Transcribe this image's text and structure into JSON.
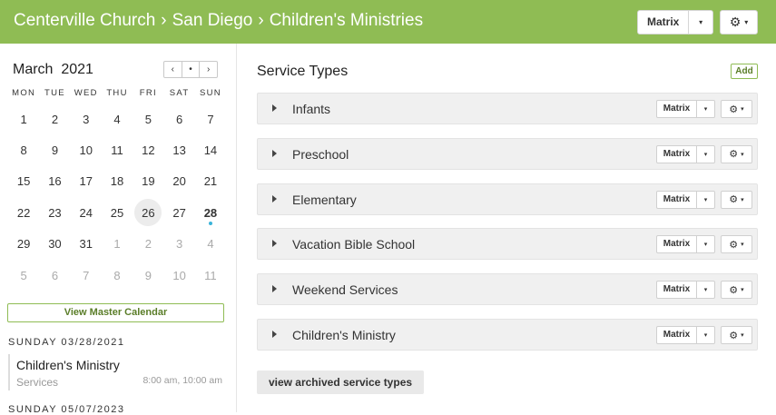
{
  "header": {
    "crumbs": [
      "Centerville Church",
      "San Diego",
      "Children's Ministries"
    ],
    "separator": "›",
    "matrix_label": "Matrix",
    "caret": "▾",
    "gear": "⚙"
  },
  "calendar": {
    "month": "March",
    "year": "2021",
    "nav": [
      "‹",
      "•",
      "›"
    ],
    "weekdays": [
      "MON",
      "TUE",
      "WED",
      "THU",
      "FRI",
      "SAT",
      "SUN"
    ],
    "days": [
      {
        "d": "1"
      },
      {
        "d": "2"
      },
      {
        "d": "3"
      },
      {
        "d": "4"
      },
      {
        "d": "5"
      },
      {
        "d": "6"
      },
      {
        "d": "7"
      },
      {
        "d": "8"
      },
      {
        "d": "9"
      },
      {
        "d": "10"
      },
      {
        "d": "11"
      },
      {
        "d": "12"
      },
      {
        "d": "13"
      },
      {
        "d": "14"
      },
      {
        "d": "15"
      },
      {
        "d": "16"
      },
      {
        "d": "17"
      },
      {
        "d": "18"
      },
      {
        "d": "19"
      },
      {
        "d": "20"
      },
      {
        "d": "21"
      },
      {
        "d": "22"
      },
      {
        "d": "23"
      },
      {
        "d": "24"
      },
      {
        "d": "25"
      },
      {
        "d": "26",
        "state": "selected"
      },
      {
        "d": "27"
      },
      {
        "d": "28",
        "state": "today"
      },
      {
        "d": "29"
      },
      {
        "d": "30"
      },
      {
        "d": "31"
      },
      {
        "d": "1",
        "state": "muted"
      },
      {
        "d": "2",
        "state": "muted"
      },
      {
        "d": "3",
        "state": "muted"
      },
      {
        "d": "4",
        "state": "muted"
      },
      {
        "d": "5",
        "state": "muted"
      },
      {
        "d": "6",
        "state": "muted"
      },
      {
        "d": "7",
        "state": "muted"
      },
      {
        "d": "8",
        "state": "muted"
      },
      {
        "d": "9",
        "state": "muted"
      },
      {
        "d": "10",
        "state": "muted"
      },
      {
        "d": "11",
        "state": "muted"
      }
    ],
    "master_button": "View Master Calendar"
  },
  "agenda": {
    "date1": "SUNDAY 03/28/2021",
    "event_title": "Children's Ministry",
    "event_sub": "Services",
    "event_time": "8:00 am, 10:00 am",
    "date2": "SUNDAY 05/07/2023"
  },
  "service_types": {
    "title": "Service Types",
    "add_label": "Add",
    "items": [
      "Infants",
      "Preschool",
      "Elementary",
      "Vacation Bible School",
      "Weekend Services",
      "Children's Ministry"
    ],
    "row_matrix_label": "Matrix",
    "archived_label": "view archived service types"
  },
  "colors": {
    "brand": "#8fbc54",
    "today_dot": "#3ab4d9"
  }
}
